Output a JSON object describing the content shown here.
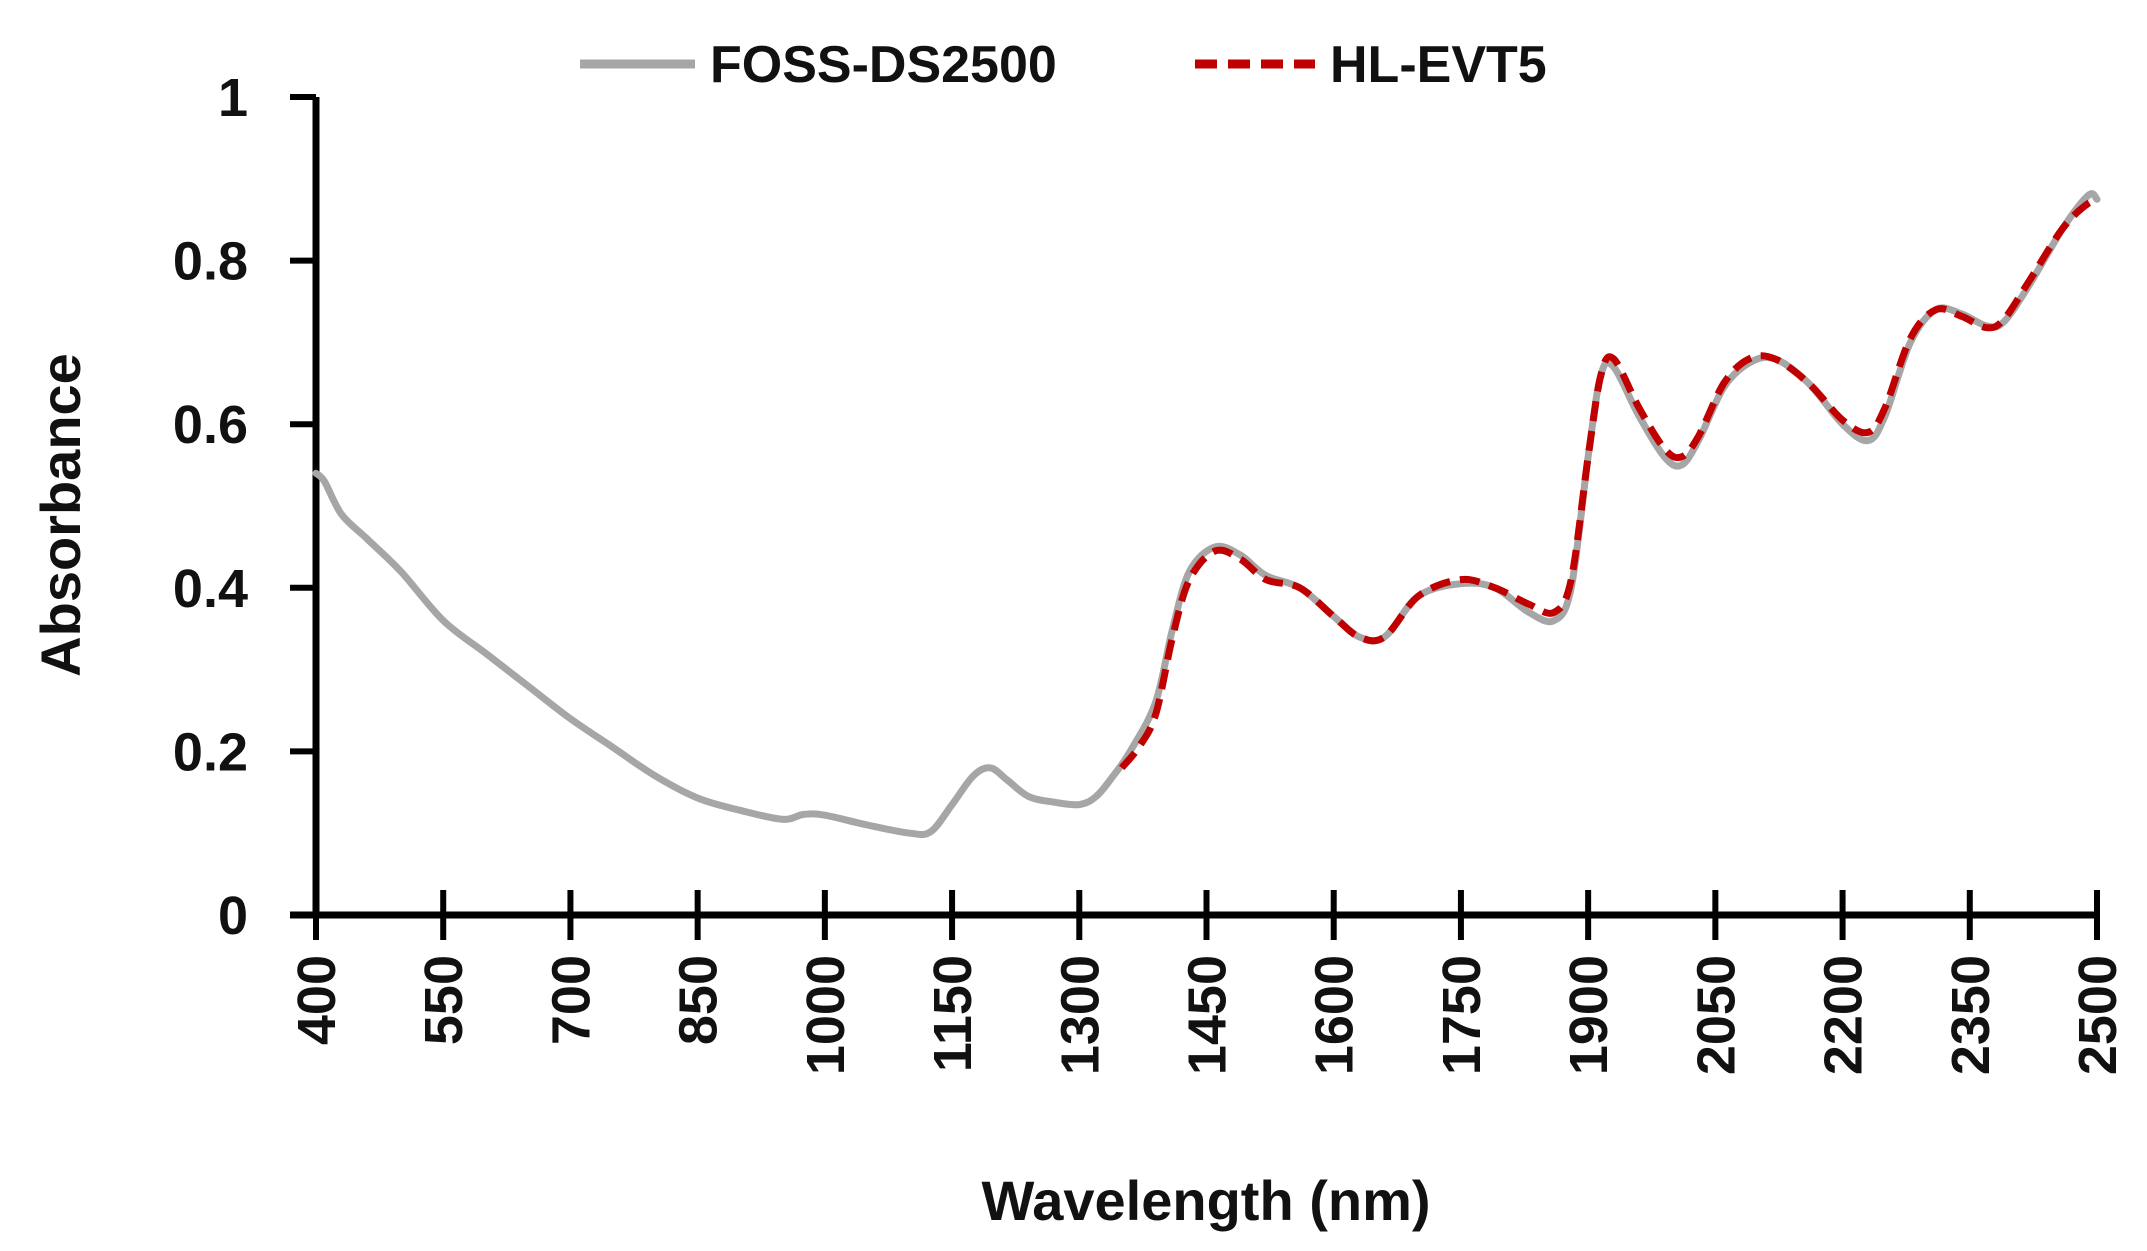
{
  "chart_data": {
    "type": "line",
    "title": "",
    "xlabel": "Wavelength (nm)",
    "ylabel": "Absorbance",
    "xlim": [
      400,
      2500
    ],
    "ylim": [
      0,
      1
    ],
    "x_ticks": [
      400,
      550,
      700,
      850,
      1000,
      1150,
      1300,
      1450,
      1600,
      1750,
      1900,
      2050,
      2200,
      2350,
      2500
    ],
    "x_tick_labels": [
      "400",
      "550",
      "700",
      "850",
      "1000",
      "1150",
      "1300",
      "1450",
      "1600",
      "1750",
      "1900",
      "2050",
      "2200",
      "2350",
      "2500"
    ],
    "y_ticks": [
      0,
      0.2,
      0.4,
      0.6,
      0.8,
      1
    ],
    "y_tick_labels": [
      "0",
      "0.2",
      "0.4",
      "0.6",
      "0.8",
      "1"
    ],
    "grid": false,
    "legend_position": "top-center",
    "series": [
      {
        "name": "FOSS-DS2500",
        "color": "#a6a6a6",
        "style": "solid",
        "points": [
          [
            400,
            0.54
          ],
          [
            410,
            0.53
          ],
          [
            430,
            0.49
          ],
          [
            460,
            0.46
          ],
          [
            500,
            0.42
          ],
          [
            550,
            0.36
          ],
          [
            600,
            0.32
          ],
          [
            650,
            0.28
          ],
          [
            700,
            0.24
          ],
          [
            750,
            0.205
          ],
          [
            800,
            0.17
          ],
          [
            850,
            0.143
          ],
          [
            900,
            0.128
          ],
          [
            950,
            0.117
          ],
          [
            975,
            0.123
          ],
          [
            1000,
            0.122
          ],
          [
            1050,
            0.11
          ],
          [
            1100,
            0.1
          ],
          [
            1125,
            0.102
          ],
          [
            1150,
            0.135
          ],
          [
            1175,
            0.17
          ],
          [
            1195,
            0.18
          ],
          [
            1215,
            0.165
          ],
          [
            1240,
            0.145
          ],
          [
            1270,
            0.138
          ],
          [
            1300,
            0.135
          ],
          [
            1320,
            0.145
          ],
          [
            1340,
            0.17
          ],
          [
            1360,
            0.2
          ],
          [
            1390,
            0.26
          ],
          [
            1410,
            0.35
          ],
          [
            1430,
            0.42
          ],
          [
            1460,
            0.45
          ],
          [
            1490,
            0.44
          ],
          [
            1520,
            0.415
          ],
          [
            1560,
            0.4
          ],
          [
            1600,
            0.365
          ],
          [
            1630,
            0.34
          ],
          [
            1660,
            0.34
          ],
          [
            1700,
            0.39
          ],
          [
            1750,
            0.405
          ],
          [
            1790,
            0.4
          ],
          [
            1830,
            0.37
          ],
          [
            1860,
            0.36
          ],
          [
            1880,
            0.4
          ],
          [
            1900,
            0.56
          ],
          [
            1915,
            0.66
          ],
          [
            1930,
            0.67
          ],
          [
            1960,
            0.61
          ],
          [
            1990,
            0.56
          ],
          [
            2010,
            0.55
          ],
          [
            2030,
            0.58
          ],
          [
            2060,
            0.645
          ],
          [
            2090,
            0.675
          ],
          [
            2120,
            0.68
          ],
          [
            2160,
            0.65
          ],
          [
            2200,
            0.6
          ],
          [
            2230,
            0.58
          ],
          [
            2250,
            0.61
          ],
          [
            2280,
            0.7
          ],
          [
            2310,
            0.74
          ],
          [
            2340,
            0.735
          ],
          [
            2370,
            0.72
          ],
          [
            2390,
            0.725
          ],
          [
            2420,
            0.77
          ],
          [
            2460,
            0.84
          ],
          [
            2490,
            0.88
          ],
          [
            2500,
            0.875
          ]
        ]
      },
      {
        "name": "HL-EVT5",
        "color": "#c00000",
        "style": "dashed",
        "points": [
          [
            1350,
            0.18
          ],
          [
            1370,
            0.205
          ],
          [
            1390,
            0.245
          ],
          [
            1410,
            0.34
          ],
          [
            1430,
            0.41
          ],
          [
            1460,
            0.445
          ],
          [
            1490,
            0.435
          ],
          [
            1520,
            0.41
          ],
          [
            1560,
            0.4
          ],
          [
            1600,
            0.365
          ],
          [
            1630,
            0.34
          ],
          [
            1660,
            0.34
          ],
          [
            1700,
            0.39
          ],
          [
            1750,
            0.41
          ],
          [
            1790,
            0.4
          ],
          [
            1830,
            0.38
          ],
          [
            1860,
            0.37
          ],
          [
            1880,
            0.41
          ],
          [
            1900,
            0.56
          ],
          [
            1915,
            0.66
          ],
          [
            1930,
            0.68
          ],
          [
            1960,
            0.62
          ],
          [
            1990,
            0.57
          ],
          [
            2010,
            0.56
          ],
          [
            2030,
            0.585
          ],
          [
            2060,
            0.65
          ],
          [
            2090,
            0.68
          ],
          [
            2120,
            0.68
          ],
          [
            2160,
            0.65
          ],
          [
            2200,
            0.605
          ],
          [
            2230,
            0.59
          ],
          [
            2250,
            0.62
          ],
          [
            2280,
            0.705
          ],
          [
            2310,
            0.74
          ],
          [
            2340,
            0.732
          ],
          [
            2370,
            0.718
          ],
          [
            2390,
            0.728
          ],
          [
            2420,
            0.775
          ],
          [
            2460,
            0.84
          ],
          [
            2490,
            0.87
          ],
          [
            2500,
            0.868
          ]
        ]
      }
    ]
  }
}
